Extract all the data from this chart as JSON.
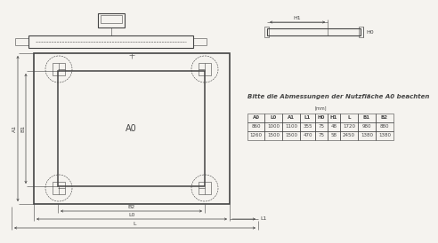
{
  "note_text": "Bitte die Abmessungen der Nutzfläche A0 beachten",
  "table_unit": "[mm]",
  "table_headers": [
    "A0",
    "L0",
    "A1",
    "L1",
    "H0",
    "H1",
    "L",
    "B1",
    "B2"
  ],
  "table_row1": [
    "860",
    "1000",
    "1100",
    "355",
    "75",
    "48",
    "1720",
    "980",
    "880"
  ],
  "table_row2": [
    "1260",
    "1500",
    "1500",
    "470",
    "75",
    "58",
    "2450",
    "1380",
    "1380"
  ],
  "bg_color": "#f5f3ef",
  "line_color": "#444444",
  "thin": 0.4,
  "med": 0.8,
  "thick": 1.2
}
